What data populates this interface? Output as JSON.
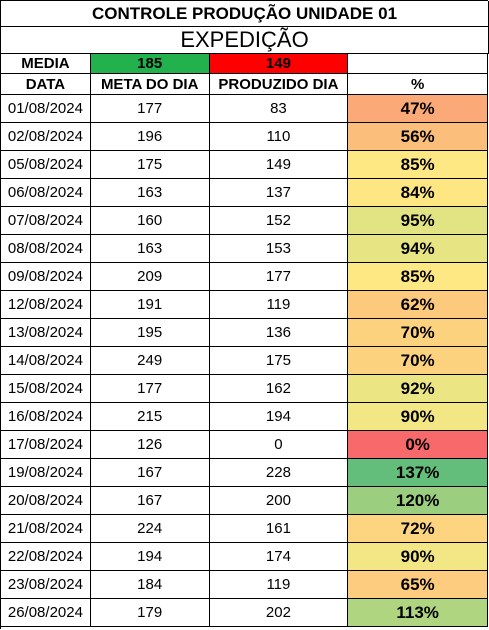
{
  "title": "CONTROLE PRODUÇÃO UNIDADE 01",
  "subtitle": "EXPEDIÇÃO",
  "media": {
    "label": "MEDIA",
    "meta": "185",
    "produzido": "149",
    "meta_color": "#22b14c",
    "produzido_color": "#ff0000"
  },
  "headers": {
    "data": "DATA",
    "meta": "META DO DIA",
    "produzido": "PRODUZIDO DIA",
    "pct": "%"
  },
  "rows": [
    {
      "data": "01/08/2024",
      "meta": "177",
      "produzido": "83",
      "pct": "47%",
      "color": "#fbaa77"
    },
    {
      "data": "02/08/2024",
      "meta": "196",
      "produzido": "110",
      "pct": "56%",
      "color": "#fcbe7b"
    },
    {
      "data": "05/08/2024",
      "meta": "175",
      "produzido": "149",
      "pct": "85%",
      "color": "#fee883"
    },
    {
      "data": "06/08/2024",
      "meta": "163",
      "produzido": "137",
      "pct": "84%",
      "color": "#fee683"
    },
    {
      "data": "07/08/2024",
      "meta": "160",
      "produzido": "152",
      "pct": "95%",
      "color": "#e2e383"
    },
    {
      "data": "08/08/2024",
      "meta": "163",
      "produzido": "153",
      "pct": "94%",
      "color": "#e6e483"
    },
    {
      "data": "09/08/2024",
      "meta": "209",
      "produzido": "177",
      "pct": "85%",
      "color": "#fee883"
    },
    {
      "data": "12/08/2024",
      "meta": "191",
      "produzido": "119",
      "pct": "62%",
      "color": "#fdc97d"
    },
    {
      "data": "13/08/2024",
      "meta": "195",
      "produzido": "136",
      "pct": "70%",
      "color": "#fdd27f"
    },
    {
      "data": "14/08/2024",
      "meta": "249",
      "produzido": "175",
      "pct": "70%",
      "color": "#fdd27f"
    },
    {
      "data": "15/08/2024",
      "meta": "177",
      "produzido": "162",
      "pct": "92%",
      "color": "#ece584"
    },
    {
      "data": "16/08/2024",
      "meta": "215",
      "produzido": "194",
      "pct": "90%",
      "color": "#f2e784"
    },
    {
      "data": "17/08/2024",
      "meta": "126",
      "produzido": "0",
      "pct": "0%",
      "color": "#f8696b"
    },
    {
      "data": "19/08/2024",
      "meta": "167",
      "produzido": "228",
      "pct": "137%",
      "color": "#63be7b"
    },
    {
      "data": "20/08/2024",
      "meta": "167",
      "produzido": "200",
      "pct": "120%",
      "color": "#9bcf7f"
    },
    {
      "data": "21/08/2024",
      "meta": "224",
      "produzido": "161",
      "pct": "72%",
      "color": "#fdd580"
    },
    {
      "data": "22/08/2024",
      "meta": "194",
      "produzido": "174",
      "pct": "90%",
      "color": "#f2e784"
    },
    {
      "data": "23/08/2024",
      "meta": "184",
      "produzido": "119",
      "pct": "65%",
      "color": "#fdcc7e"
    },
    {
      "data": "26/08/2024",
      "meta": "179",
      "produzido": "202",
      "pct": "113%",
      "color": "#b0d580"
    }
  ]
}
